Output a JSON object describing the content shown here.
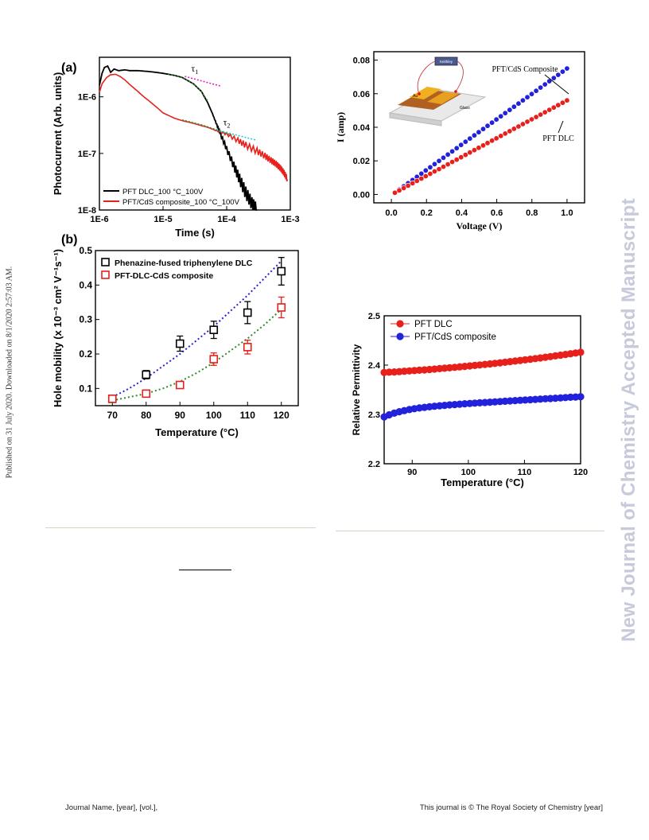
{
  "side_note": "Published on 31 July 2020. Downloaded on 8/1/2020 2:57:03 AM.",
  "watermark": "New Journal of Chemistry Accepted Manuscript",
  "footer": {
    "left": "Journal Name, [year], [vol.],",
    "right": "This journal is © The Royal Society of Chemistry [year]"
  },
  "colors": {
    "black": "#000000",
    "red": "#e8201c",
    "blue": "#2222dd",
    "green": "#2e8b2e",
    "magenta": "#e020c0",
    "cyan": "#20c8e8"
  },
  "chart_data": [
    {
      "id": "a",
      "panel_label": "(a)",
      "type": "line",
      "xscale": "log",
      "yscale": "log",
      "xlabel": "Time (s)",
      "ylabel": "Photocurrent (Arb. units)",
      "xlim": [
        1e-06,
        0.001
      ],
      "ylim": [
        1e-08,
        5e-06
      ],
      "xticks": [
        {
          "v": 1e-06,
          "label": "1E-6"
        },
        {
          "v": 1e-05,
          "label": "1E-5"
        },
        {
          "v": 0.0001,
          "label": "1E-4"
        },
        {
          "v": 0.001,
          "label": "1E-3"
        }
      ],
      "yticks": [
        {
          "v": 1e-08,
          "label": "1E-8"
        },
        {
          "v": 1e-07,
          "label": "1E-7"
        },
        {
          "v": 1e-06,
          "label": "1E-6"
        }
      ],
      "series": [
        {
          "name": "PFT DLC_100 °C_100V",
          "color": "#000000",
          "x": [
            1e-06,
            1.1e-06,
            1.2e-06,
            1.35e-06,
            1.5e-06,
            1.7e-06,
            2e-06,
            2.5e-06,
            3e-06,
            4e-06,
            5e-06,
            7e-06,
            1e-05,
            1.5e-05,
            2e-05,
            3e-05,
            4e-05,
            5e-05,
            6e-05,
            7e-05,
            8e-05,
            0.0001,
            0.00013,
            0.00016,
            0.0002,
            0.00025,
            0.0003
          ],
          "y": [
            1.6e-06,
            2.6e-06,
            3.3e-06,
            3.5e-06,
            2.7e-06,
            3.1e-06,
            2.9e-06,
            3e-06,
            2.9e-06,
            2.9e-06,
            2.85e-06,
            2.75e-06,
            2.6e-06,
            2.4e-06,
            2.2e-06,
            1.7e-06,
            1.25e-06,
            8e-07,
            5e-07,
            3.2e-07,
            2.2e-07,
            1.2e-07,
            6e-08,
            3.5e-08,
            2e-08,
            1.3e-08,
            1e-08
          ]
        },
        {
          "name": "PFT/CdS composite_100 °C_100V",
          "color": "#e8201c",
          "x": [
            1e-06,
            1.1e-06,
            1.3e-06,
            1.5e-06,
            1.8e-06,
            2.1e-06,
            2.5e-06,
            3e-06,
            4e-06,
            5e-06,
            6e-06,
            8e-06,
            1e-05,
            1.5e-05,
            2e-05,
            3e-05,
            4e-05,
            5e-05,
            7e-05,
            0.0001,
            0.00015,
            0.0002,
            0.0003,
            0.0004,
            0.0005,
            0.0006,
            0.0007,
            0.0008,
            0.0009
          ],
          "y": [
            1.2e-06,
            1.7e-06,
            2.2e-06,
            2.45e-06,
            2.5e-06,
            2.3e-06,
            2e-06,
            1.65e-06,
            1.25e-06,
            1e-06,
            8.5e-07,
            6.5e-07,
            5.2e-07,
            4.2e-07,
            3.8e-07,
            3.4e-07,
            3.1e-07,
            2.9e-07,
            2.5e-07,
            2.2e-07,
            1.7e-07,
            1.4e-07,
            1.1e-07,
            9e-08,
            7.5e-08,
            6.5e-08,
            5.5e-08,
            4.5e-08,
            3.5e-08
          ]
        }
      ],
      "annotations": [
        {
          "label": "τ1",
          "color": "#e020c0",
          "x": [
            2.2e-05,
            8e-05
          ],
          "y": [
            2.3e-06,
            1.55e-06
          ]
        },
        {
          "label": "τ2",
          "color": "#20c8e8",
          "x": [
            7e-05,
            0.0003
          ],
          "y": [
            2.6e-07,
            1.7e-07
          ]
        }
      ],
      "fit_lines": [
        {
          "color": "#2e8b2e",
          "x": [
            1.2e-05,
            2e-05,
            3e-05,
            4e-05,
            5e-05
          ],
          "y": [
            2.55e-06,
            2.2e-06,
            1.7e-06,
            1.25e-06,
            8.5e-07
          ]
        },
        {
          "color": "#2e8b2e",
          "x": [
            2e-05,
            4e-05,
            7e-05,
            0.00012
          ],
          "y": [
            3.9e-07,
            3.2e-07,
            2.6e-07,
            2.1e-07
          ]
        }
      ]
    },
    {
      "id": "b",
      "panel_label": "(b)",
      "type": "scatter",
      "xlabel": "Temperature (°C)",
      "ylabel": "Hole mobility (x 10⁻³ cm² V⁻¹s⁻¹)",
      "xlim": [
        65,
        125
      ],
      "ylim": [
        0.05,
        0.5
      ],
      "xticks": [
        70,
        80,
        90,
        100,
        110,
        120
      ],
      "yticks": [
        0.1,
        0.2,
        0.3,
        0.4,
        0.5
      ],
      "legend_position": "top-left",
      "series": [
        {
          "name": "Phenazine-fused triphenylene DLC",
          "color": "#000000",
          "fit_color": "#2222dd",
          "x": [
            70,
            80,
            90,
            100,
            110,
            120
          ],
          "y": [
            0.07,
            0.14,
            0.23,
            0.27,
            0.32,
            0.44
          ],
          "err": [
            0.008,
            0.012,
            0.022,
            0.025,
            0.032,
            0.04
          ],
          "fit_x": [
            70,
            75,
            80,
            85,
            90,
            95,
            100,
            105,
            110,
            115,
            120
          ],
          "fit_y": [
            0.075,
            0.1,
            0.13,
            0.165,
            0.2,
            0.24,
            0.28,
            0.325,
            0.37,
            0.42,
            0.47
          ]
        },
        {
          "name": "PFT-DLC-CdS composite",
          "color": "#e8201c",
          "fit_color": "#2e8b2e",
          "x": [
            70,
            80,
            90,
            100,
            110,
            120
          ],
          "y": [
            0.07,
            0.085,
            0.11,
            0.185,
            0.22,
            0.335
          ],
          "err": [
            0.006,
            0.008,
            0.01,
            0.018,
            0.02,
            0.03
          ],
          "fit_x": [
            70,
            75,
            80,
            85,
            90,
            95,
            100,
            105,
            110,
            115,
            120
          ],
          "fit_y": [
            0.065,
            0.075,
            0.085,
            0.1,
            0.12,
            0.145,
            0.175,
            0.21,
            0.245,
            0.285,
            0.33
          ]
        }
      ]
    },
    {
      "id": "c",
      "type": "line",
      "xlabel": "Voltage (V)",
      "ylabel": "I (amp)",
      "xlim": [
        -0.1,
        1.1
      ],
      "ylim": [
        -0.005,
        0.085
      ],
      "xticks": [
        0.0,
        0.2,
        0.4,
        0.6,
        0.8,
        1.0
      ],
      "xtick_labels": [
        "0.0",
        "0.2",
        "0.4",
        "0.6",
        "0.8",
        "1.0"
      ],
      "yticks": [
        0.0,
        0.02,
        0.04,
        0.06,
        0.08
      ],
      "ytick_labels": [
        "0.00",
        "0.02",
        "0.04",
        "0.06",
        "0.08"
      ],
      "series": [
        {
          "name": "PFT/CdS Composite",
          "color": "#2222dd",
          "x_start": 0.02,
          "x_end": 1.0,
          "y_start": 0.001,
          "y_end": 0.075,
          "n": 40
        },
        {
          "name": "PFT DLC",
          "color": "#e8201c",
          "x_start": 0.02,
          "x_end": 1.0,
          "y_start": 0.001,
          "y_end": 0.056,
          "n": 40
        }
      ],
      "inset_labels": [
        "Keithley",
        "Au",
        "Glass"
      ]
    },
    {
      "id": "d",
      "type": "line",
      "xlabel": "Temperature (°C)",
      "ylabel": "Relative Permittivity",
      "xlim": [
        85,
        120
      ],
      "ylim": [
        2.2,
        2.5
      ],
      "xticks": [
        90,
        100,
        110,
        120
      ],
      "yticks": [
        2.2,
        2.3,
        2.4,
        2.5
      ],
      "ytick_labels": [
        "2.2",
        "2.3",
        "2.4",
        "2.5"
      ],
      "legend_position": "top-left",
      "series": [
        {
          "name": "PFT DLC",
          "color": "#e8201c",
          "x_start": 85,
          "x_end": 120,
          "y_start": 2.385,
          "y_end": 2.426,
          "n": 40,
          "shape": "linear"
        },
        {
          "name": "PFT/CdS composite",
          "color": "#2222dd",
          "x_start": 85,
          "x_end": 120,
          "y_start": 2.295,
          "y_end": 2.336,
          "n": 40,
          "shape": "knee"
        }
      ]
    }
  ]
}
